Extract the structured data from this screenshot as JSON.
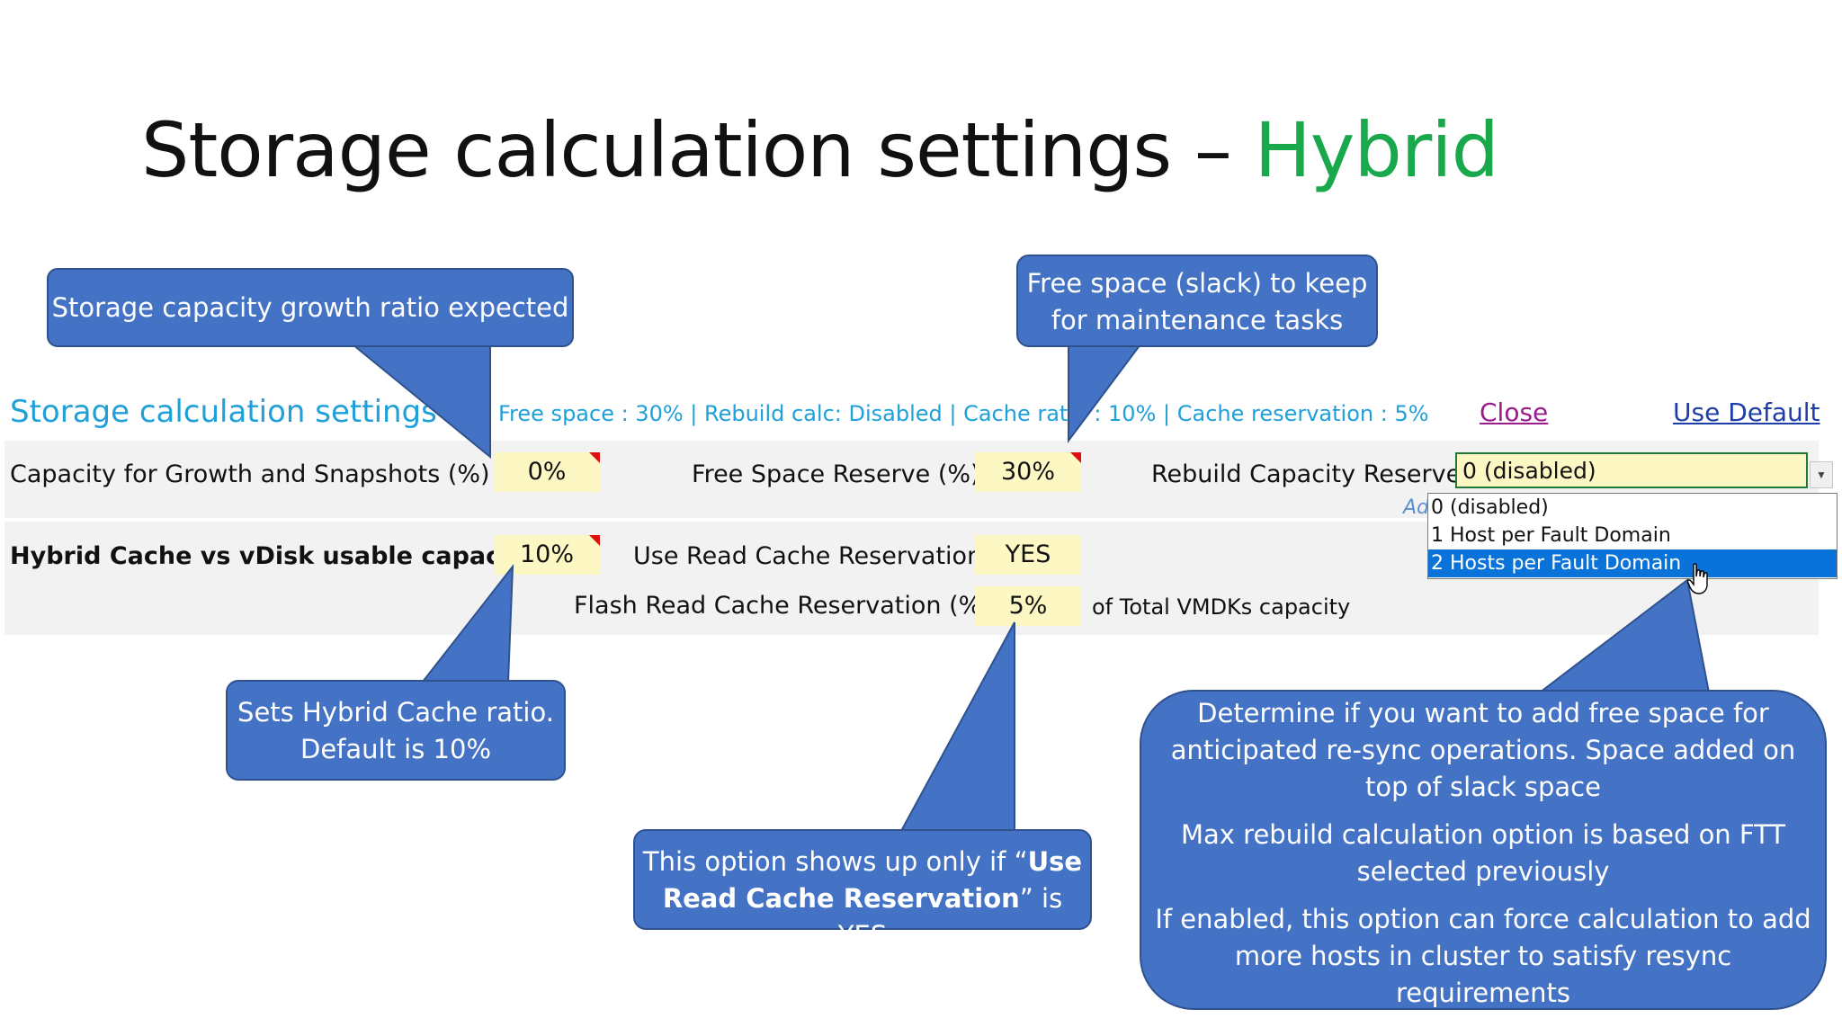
{
  "slide": {
    "title_main": "Storage calculation settings – ",
    "title_accent": "Hybrid"
  },
  "sheet": {
    "heading": "Storage calculation settings",
    "summary": "Free space : 30% | Rebuild calc: Disabled | Cache ratio : 10% | Cache reservation : 5%",
    "close_label": "Close",
    "default_label": "Use Default",
    "rows": {
      "growth_label": "Capacity for Growth and Snapshots (%) :",
      "growth_value": "0%",
      "free_label": "Free Space Reserve (%) :",
      "free_value": "30%",
      "rebuild_label": "Rebuild Capacity Reserve :",
      "rebuild_value": "0 (disabled)",
      "cache_label": "Hybrid Cache vs vDisk usable capacity :",
      "cache_value": "10%",
      "read_cache_label": "Use Read Cache Reservation :",
      "read_cache_value": "YES",
      "flash_label": "Flash Read Cache Reservation (%) :",
      "flash_value": "5%",
      "flash_suffix": "of Total VMDKs capacity"
    },
    "dropdown": {
      "hidden_prefix": "Ad",
      "options": [
        "0 (disabled)",
        "1 Host per Fault Domain",
        "2 Hosts per Fault Domain"
      ],
      "selected_index": 2
    }
  },
  "callouts": {
    "growth": "Storage capacity growth ratio expected",
    "free_space": [
      "Free space (slack) to keep",
      "for maintenance tasks"
    ],
    "cache_ratio": [
      "Sets Hybrid Cache ratio.",
      "Default is 10%"
    ],
    "read_cache": {
      "pre": "This option shows up only if “",
      "bold1": "Use",
      "bold2": "Read Cache Reservation",
      "post": "” is YES"
    },
    "rebuild": [
      "Determine if you want to add free space for",
      "anticipated re-sync operations. Space added on",
      "top of slack space",
      "Max rebuild calculation option is based on FTT",
      "selected previously",
      "If enabled, this option can force calculation to add",
      "more hosts in cluster to satisfy resync",
      "requirements"
    ]
  },
  "colors": {
    "accent": "#1aa84c",
    "callout": "#4472c4",
    "sheet_heading": "#1fa0d8",
    "input_fill": "#fdf8c3",
    "selected_option": "#0a73d9"
  }
}
